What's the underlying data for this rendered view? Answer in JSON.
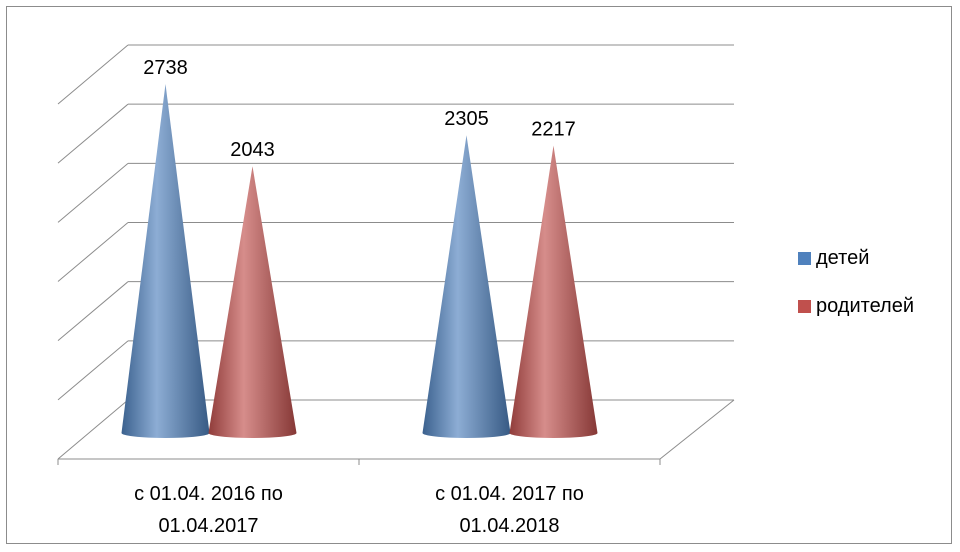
{
  "chart_data": {
    "type": "bar",
    "style": "3d-cone",
    "categories": [
      [
        "с 01.04. 2016 по",
        "01.04.2017"
      ],
      [
        "с 01.04. 2017 по",
        "01.04.2018"
      ]
    ],
    "series": [
      {
        "name": "детей",
        "values": [
          2738,
          2305
        ],
        "color": "#4f81bd"
      },
      {
        "name": "родителей",
        "values": [
          2043,
          2217
        ],
        "color": "#c0504d"
      }
    ],
    "ylim": [
      0,
      3000
    ],
    "gridlines": true,
    "legend_position": "right"
  }
}
